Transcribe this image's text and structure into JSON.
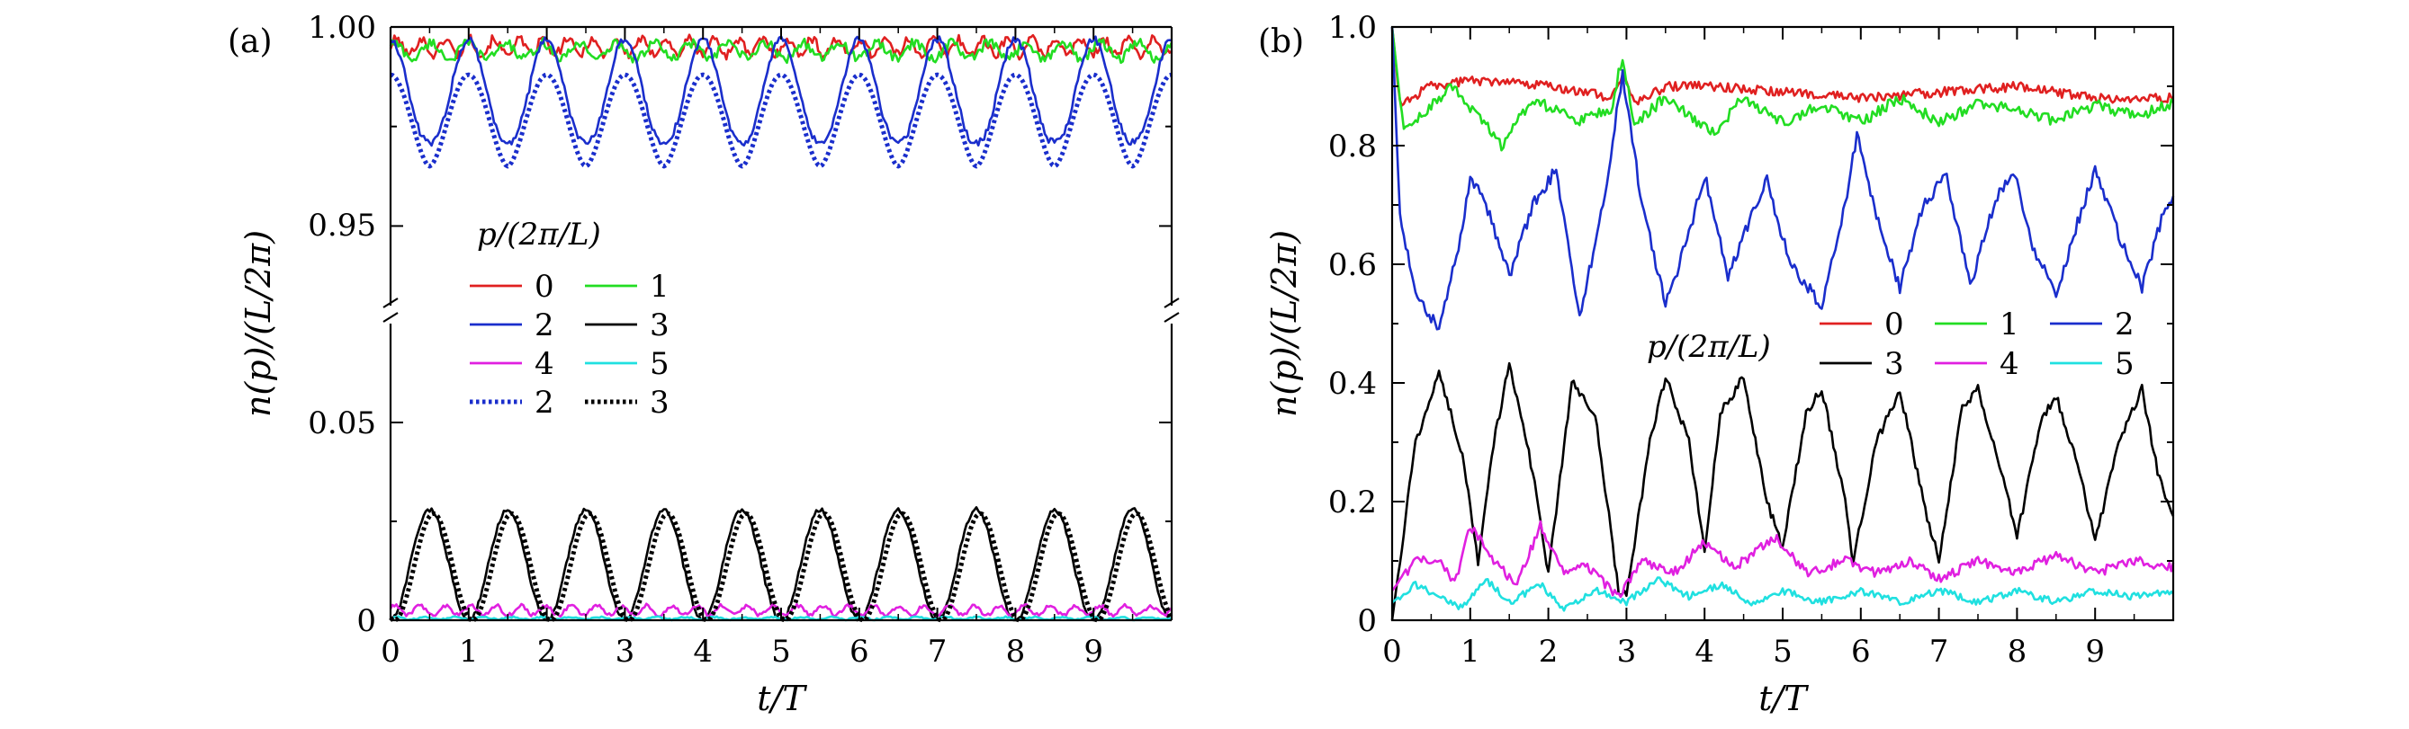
{
  "chart_data": [
    {
      "panel": "(a)",
      "type": "line",
      "xlabel": "t/T",
      "ylabel": "n(p)/(L/2π)",
      "xlim": [
        0,
        10
      ],
      "x_ticks": [
        0,
        1,
        2,
        3,
        4,
        5,
        6,
        7,
        8,
        9
      ],
      "broken_axis": true,
      "upper_ylim": [
        0.93,
        1.0
      ],
      "upper_y_ticks": [
        "0.95",
        "1.00"
      ],
      "lower_ylim": [
        0,
        0.075
      ],
      "lower_y_ticks": [
        "0",
        "0.05"
      ],
      "legend_title": "p/(2π/L)",
      "legend": [
        {
          "label": "0",
          "color": "#e02020",
          "style": "solid"
        },
        {
          "label": "1",
          "color": "#22dd22",
          "style": "solid"
        },
        {
          "label": "2",
          "color": "#1a2ecc",
          "style": "solid"
        },
        {
          "label": "3",
          "color": "#000000",
          "style": "solid"
        },
        {
          "label": "4",
          "color": "#e020e0",
          "style": "solid"
        },
        {
          "label": "5",
          "color": "#20e0e0",
          "style": "solid"
        },
        {
          "label": "2",
          "color": "#1a2ecc",
          "style": "dotted"
        },
        {
          "label": "3",
          "color": "#000000",
          "style": "dotted"
        }
      ],
      "series": [
        {
          "name": "p=0",
          "color": "#e02020",
          "style": "solid",
          "axis": "upper",
          "model": "sin",
          "mean": 0.995,
          "amp": 0.002,
          "freq": 3.2,
          "phase": 0.0,
          "noise": 0.0012
        },
        {
          "name": "p=1",
          "color": "#22dd22",
          "style": "solid",
          "axis": "upper",
          "model": "sin",
          "mean": 0.994,
          "amp": 0.002,
          "freq": 2.1,
          "phase": 1.0,
          "noise": 0.0012
        },
        {
          "name": "p=2",
          "color": "#1a2ecc",
          "style": "solid",
          "axis": "upper",
          "model": "cosdip",
          "max": 0.997,
          "min": 0.971,
          "power": 1.2,
          "noise": 0.0009
        },
        {
          "name": "p=3",
          "color": "#000000",
          "style": "solid",
          "axis": "lower",
          "model": "hump",
          "max": 0.028,
          "min": 0.0,
          "power": 1.0,
          "shift": 0.0,
          "noise": 0.0006
        },
        {
          "name": "p=4",
          "color": "#e020e0",
          "style": "solid",
          "axis": "lower",
          "model": "sin",
          "mean": 0.0025,
          "amp": 0.0012,
          "freq": 3.1,
          "phase": 0.5,
          "noise": 0.0005
        },
        {
          "name": "p=5",
          "color": "#20e0e0",
          "style": "solid",
          "axis": "lower",
          "model": "sin",
          "mean": 0.0005,
          "amp": 0.0003,
          "freq": 2.7,
          "phase": 0.2,
          "noise": 0.0002
        },
        {
          "name": "p=2 (dotted)",
          "color": "#1a2ecc",
          "style": "dotted",
          "axis": "upper",
          "model": "cosdip",
          "max": 0.988,
          "min": 0.965,
          "power": 0.85,
          "noise": 0.0
        },
        {
          "name": "p=3 (dotted)",
          "color": "#000000",
          "style": "dotted",
          "axis": "lower",
          "model": "hump",
          "max": 0.027,
          "min": 0.0,
          "power": 1.0,
          "shift": 0.05,
          "noise": 0.0
        }
      ]
    },
    {
      "panel": "(b)",
      "type": "line",
      "xlabel": "t/T",
      "ylabel": "n(p)/(L/2π)",
      "xlim": [
        0,
        10
      ],
      "ylim": [
        0,
        1.0
      ],
      "x_ticks": [
        0,
        1,
        2,
        3,
        4,
        5,
        6,
        7,
        8,
        9
      ],
      "y_ticks": [
        "0",
        "0.2",
        "0.4",
        "0.6",
        "0.8",
        "1.0"
      ],
      "legend_title": "p/(2π/L)",
      "legend": [
        {
          "label": "0",
          "color": "#e02020",
          "style": "solid"
        },
        {
          "label": "1",
          "color": "#22dd22",
          "style": "solid"
        },
        {
          "label": "2",
          "color": "#1a2ecc",
          "style": "solid"
        },
        {
          "label": "3",
          "color": "#000000",
          "style": "solid"
        },
        {
          "label": "4",
          "color": "#e020e0",
          "style": "solid"
        },
        {
          "label": "5",
          "color": "#20e0e0",
          "style": "solid"
        }
      ],
      "series": [
        {
          "name": "p=0",
          "color": "#e02020",
          "style": "solid",
          "points": [
            [
              0,
              1.0
            ],
            [
              0.1,
              0.87
            ],
            [
              0.5,
              0.9
            ],
            [
              1,
              0.91
            ],
            [
              2,
              0.9
            ],
            [
              2.5,
              0.89
            ],
            [
              2.8,
              0.88
            ],
            [
              2.95,
              0.92
            ],
            [
              3.1,
              0.87
            ],
            [
              3.5,
              0.9
            ],
            [
              4,
              0.9
            ],
            [
              5,
              0.89
            ],
            [
              6,
              0.88
            ],
            [
              7,
              0.89
            ],
            [
              8,
              0.9
            ],
            [
              9,
              0.88
            ],
            [
              10,
              0.88
            ]
          ],
          "noise": 0.008
        },
        {
          "name": "p=1",
          "color": "#22dd22",
          "style": "solid",
          "points": [
            [
              0,
              1.0
            ],
            [
              0.15,
              0.82
            ],
            [
              0.5,
              0.87
            ],
            [
              0.8,
              0.9
            ],
            [
              1.4,
              0.8
            ],
            [
              1.8,
              0.88
            ],
            [
              2.4,
              0.84
            ],
            [
              2.8,
              0.86
            ],
            [
              2.95,
              0.95
            ],
            [
              3.1,
              0.84
            ],
            [
              3.5,
              0.88
            ],
            [
              4.1,
              0.82
            ],
            [
              4.5,
              0.88
            ],
            [
              5,
              0.84
            ],
            [
              5.5,
              0.87
            ],
            [
              6,
              0.84
            ],
            [
              6.5,
              0.88
            ],
            [
              7,
              0.84
            ],
            [
              7.5,
              0.87
            ],
            [
              8,
              0.86
            ],
            [
              8.5,
              0.84
            ],
            [
              9,
              0.87
            ],
            [
              9.5,
              0.85
            ],
            [
              10,
              0.87
            ]
          ],
          "noise": 0.01
        },
        {
          "name": "p=2",
          "color": "#1a2ecc",
          "style": "solid",
          "points": [
            [
              0,
              1.0
            ],
            [
              0.1,
              0.68
            ],
            [
              0.3,
              0.55
            ],
            [
              0.6,
              0.49
            ],
            [
              0.9,
              0.66
            ],
            [
              1.0,
              0.75
            ],
            [
              1.2,
              0.7
            ],
            [
              1.5,
              0.58
            ],
            [
              1.8,
              0.7
            ],
            [
              2.1,
              0.76
            ],
            [
              2.4,
              0.51
            ],
            [
              2.7,
              0.7
            ],
            [
              2.95,
              0.92
            ],
            [
              3.2,
              0.7
            ],
            [
              3.5,
              0.53
            ],
            [
              3.8,
              0.65
            ],
            [
              4.0,
              0.75
            ],
            [
              4.3,
              0.58
            ],
            [
              4.6,
              0.68
            ],
            [
              4.8,
              0.74
            ],
            [
              5.1,
              0.6
            ],
            [
              5.5,
              0.53
            ],
            [
              5.8,
              0.7
            ],
            [
              5.95,
              0.82
            ],
            [
              6.2,
              0.68
            ],
            [
              6.5,
              0.56
            ],
            [
              6.8,
              0.7
            ],
            [
              7.1,
              0.75
            ],
            [
              7.4,
              0.56
            ],
            [
              7.7,
              0.7
            ],
            [
              7.95,
              0.76
            ],
            [
              8.2,
              0.63
            ],
            [
              8.5,
              0.55
            ],
            [
              8.8,
              0.68
            ],
            [
              9.0,
              0.76
            ],
            [
              9.3,
              0.65
            ],
            [
              9.6,
              0.56
            ],
            [
              9.9,
              0.7
            ],
            [
              10,
              0.71
            ]
          ],
          "noise": 0.01
        },
        {
          "name": "p=3",
          "color": "#000000",
          "style": "solid",
          "points": [
            [
              0,
              0.0
            ],
            [
              0.3,
              0.3
            ],
            [
              0.6,
              0.42
            ],
            [
              0.9,
              0.28
            ],
            [
              1.1,
              0.1
            ],
            [
              1.3,
              0.3
            ],
            [
              1.5,
              0.43
            ],
            [
              1.8,
              0.25
            ],
            [
              2.0,
              0.08
            ],
            [
              2.3,
              0.4
            ],
            [
              2.6,
              0.35
            ],
            [
              2.9,
              0.05
            ],
            [
              3.0,
              0.04
            ],
            [
              3.3,
              0.3
            ],
            [
              3.5,
              0.41
            ],
            [
              3.8,
              0.3
            ],
            [
              4.0,
              0.12
            ],
            [
              4.2,
              0.35
            ],
            [
              4.5,
              0.41
            ],
            [
              4.8,
              0.2
            ],
            [
              5.0,
              0.12
            ],
            [
              5.3,
              0.35
            ],
            [
              5.5,
              0.39
            ],
            [
              5.8,
              0.2
            ],
            [
              5.9,
              0.1
            ],
            [
              6.2,
              0.3
            ],
            [
              6.5,
              0.39
            ],
            [
              6.8,
              0.2
            ],
            [
              7.0,
              0.1
            ],
            [
              7.3,
              0.36
            ],
            [
              7.5,
              0.39
            ],
            [
              7.8,
              0.25
            ],
            [
              8.0,
              0.14
            ],
            [
              8.3,
              0.33
            ],
            [
              8.5,
              0.38
            ],
            [
              8.8,
              0.25
            ],
            [
              9.0,
              0.13
            ],
            [
              9.3,
              0.3
            ],
            [
              9.6,
              0.39
            ],
            [
              9.8,
              0.25
            ],
            [
              10,
              0.17
            ]
          ],
          "noise": 0.008
        },
        {
          "name": "p=4",
          "color": "#e020e0",
          "style": "solid",
          "points": [
            [
              0,
              0.05
            ],
            [
              0.3,
              0.1
            ],
            [
              0.6,
              0.1
            ],
            [
              0.8,
              0.06
            ],
            [
              1.0,
              0.16
            ],
            [
              1.3,
              0.1
            ],
            [
              1.6,
              0.06
            ],
            [
              1.9,
              0.16
            ],
            [
              2.2,
              0.08
            ],
            [
              2.5,
              0.09
            ],
            [
              2.9,
              0.04
            ],
            [
              3.2,
              0.1
            ],
            [
              3.6,
              0.08
            ],
            [
              4.0,
              0.13
            ],
            [
              4.4,
              0.09
            ],
            [
              4.9,
              0.14
            ],
            [
              5.3,
              0.08
            ],
            [
              5.8,
              0.1
            ],
            [
              6.2,
              0.08
            ],
            [
              6.6,
              0.1
            ],
            [
              7.0,
              0.07
            ],
            [
              7.5,
              0.1
            ],
            [
              8.0,
              0.08
            ],
            [
              8.5,
              0.11
            ],
            [
              9.0,
              0.08
            ],
            [
              9.5,
              0.1
            ],
            [
              10,
              0.09
            ]
          ],
          "noise": 0.008
        },
        {
          "name": "p=5",
          "color": "#20e0e0",
          "style": "solid",
          "points": [
            [
              0,
              0.03
            ],
            [
              0.3,
              0.06
            ],
            [
              0.6,
              0.04
            ],
            [
              0.9,
              0.02
            ],
            [
              1.2,
              0.07
            ],
            [
              1.5,
              0.03
            ],
            [
              1.9,
              0.06
            ],
            [
              2.2,
              0.02
            ],
            [
              2.6,
              0.05
            ],
            [
              3.0,
              0.03
            ],
            [
              3.4,
              0.07
            ],
            [
              3.8,
              0.04
            ],
            [
              4.2,
              0.06
            ],
            [
              4.6,
              0.03
            ],
            [
              5.0,
              0.05
            ],
            [
              5.5,
              0.03
            ],
            [
              6.0,
              0.05
            ],
            [
              6.5,
              0.03
            ],
            [
              7.0,
              0.05
            ],
            [
              7.5,
              0.03
            ],
            [
              8.0,
              0.05
            ],
            [
              8.5,
              0.03
            ],
            [
              9.0,
              0.05
            ],
            [
              9.5,
              0.04
            ],
            [
              10,
              0.05
            ]
          ],
          "noise": 0.006
        }
      ]
    }
  ]
}
